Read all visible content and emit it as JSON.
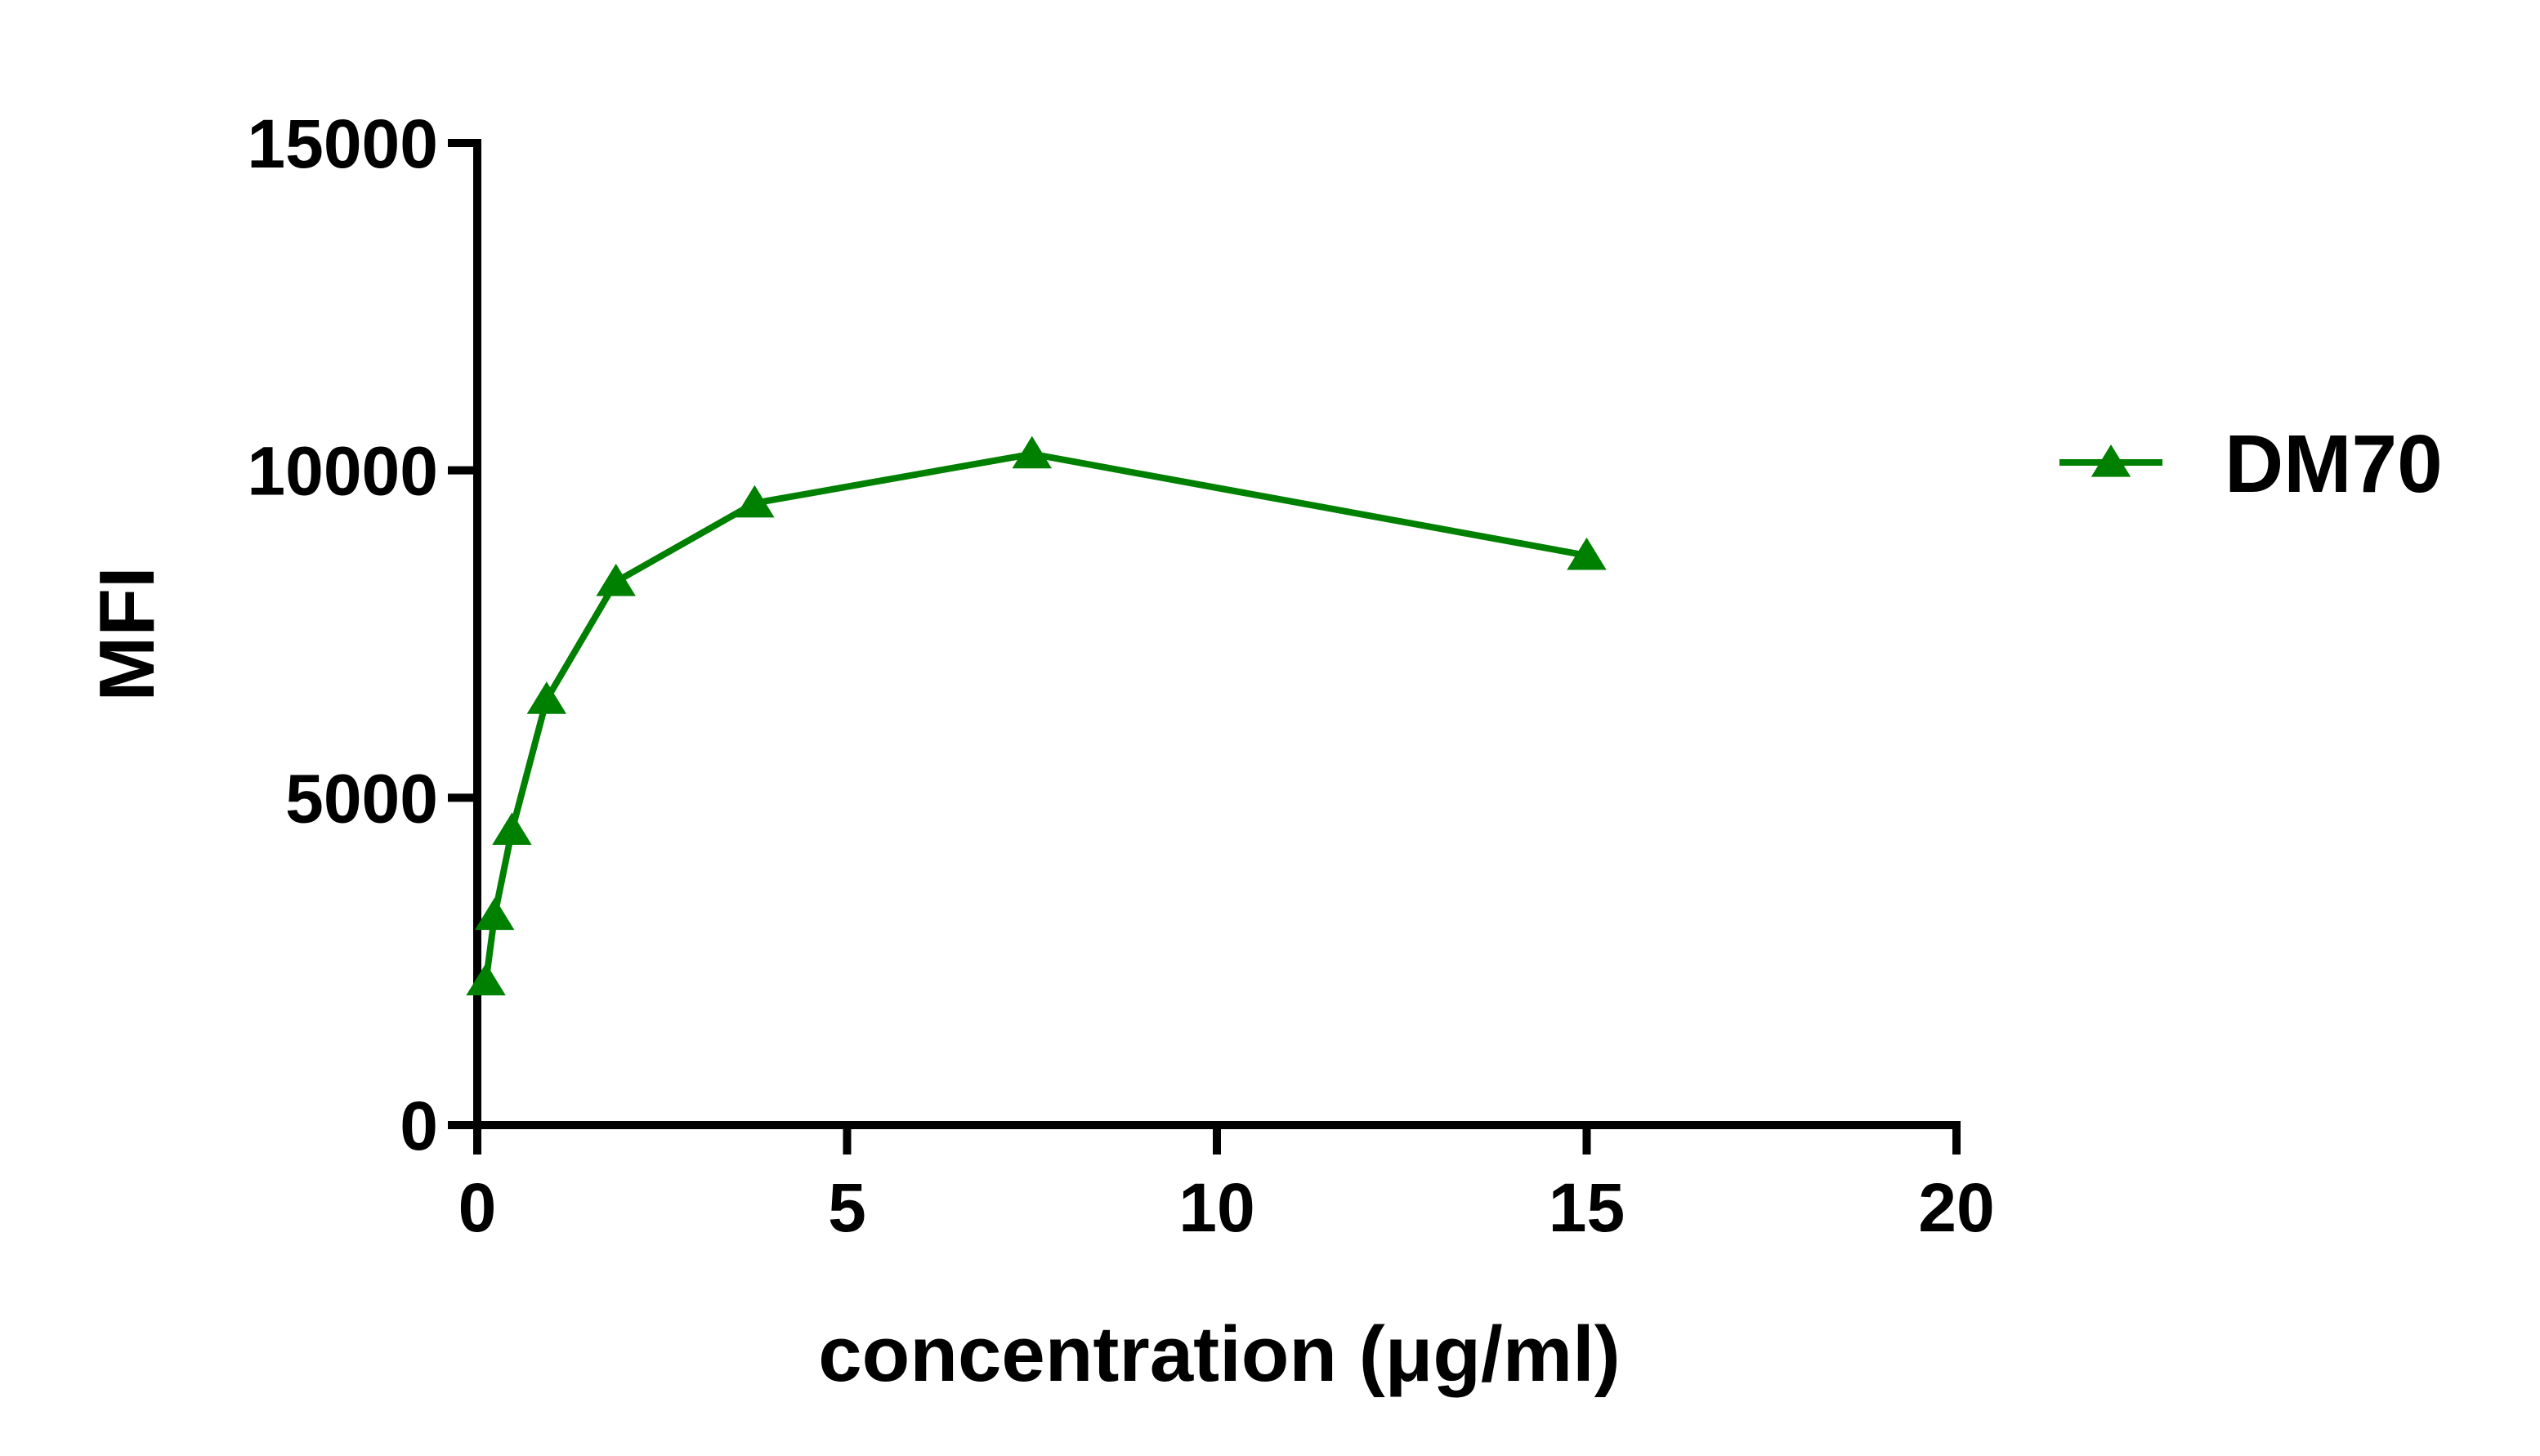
{
  "chart_data": {
    "type": "line",
    "xlabel": "concentration (μg/ml)",
    "ylabel": "MFI",
    "x": [
      0.117,
      0.234,
      0.469,
      0.9375,
      1.875,
      3.75,
      7.5,
      15
    ],
    "series": [
      {
        "name": "DM70",
        "color": "#008000",
        "values": [
          2200,
          3200,
          4500,
          6500,
          8300,
          9500,
          10250,
          8700
        ]
      }
    ],
    "xlim": [
      0,
      20
    ],
    "xticks": [
      0,
      5,
      10,
      15,
      20
    ],
    "ylim": [
      0,
      15000
    ],
    "yticks": [
      0,
      5000,
      10000,
      15000
    ],
    "legend": "right"
  }
}
